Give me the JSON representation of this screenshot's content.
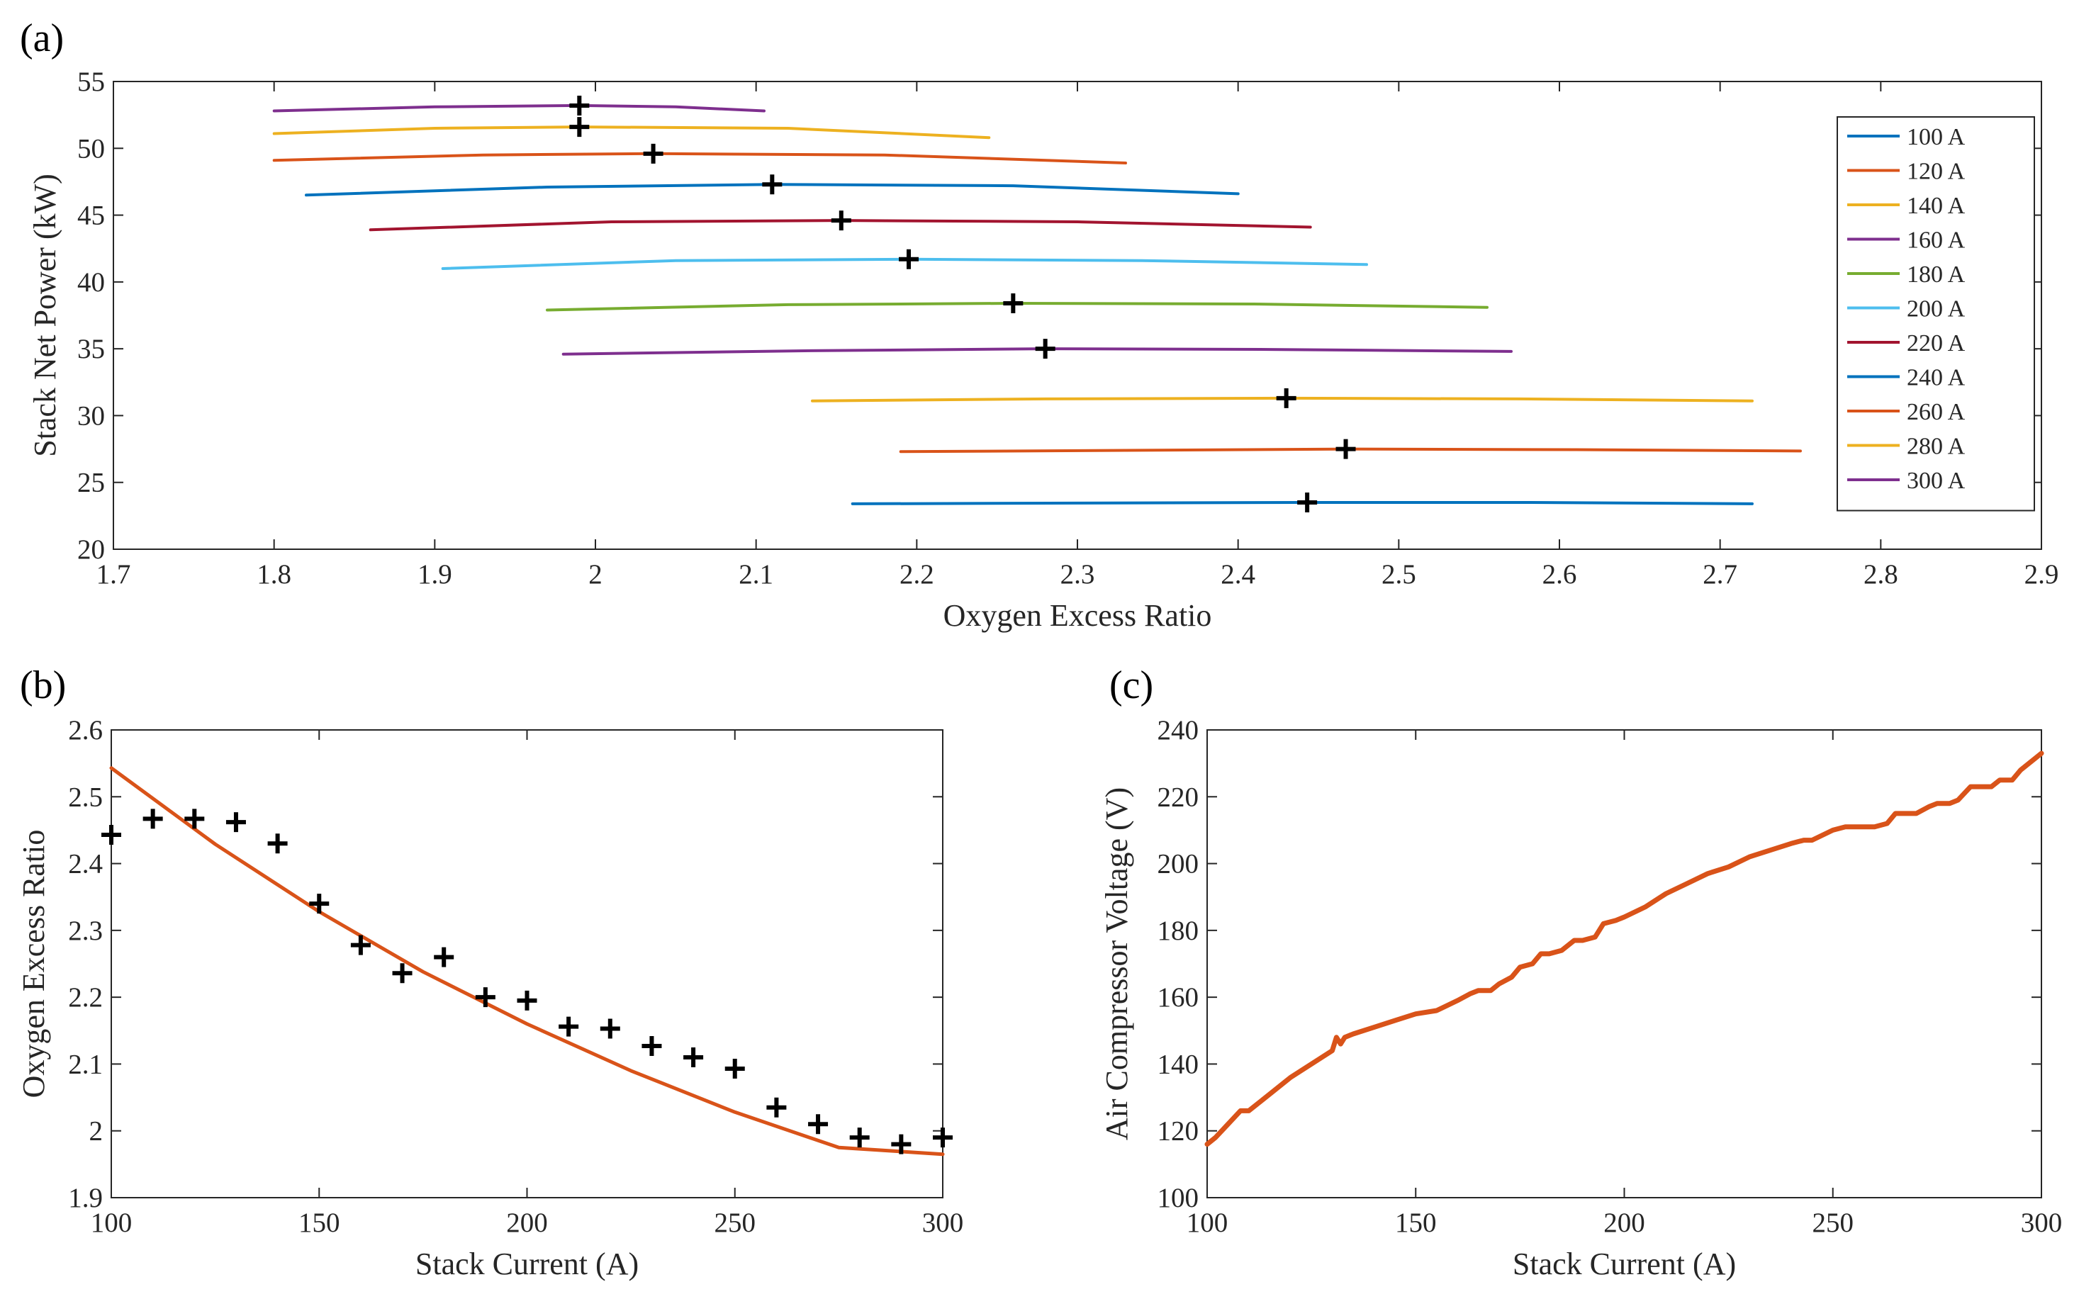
{
  "panels": {
    "a": {
      "label": "(a)"
    },
    "b": {
      "label": "(b)"
    },
    "c": {
      "label": "(c)"
    }
  },
  "chart_data": [
    {
      "id": "a",
      "type": "line",
      "xlabel": "Oxygen Excess Ratio",
      "ylabel": "Stack Net Power (kW)",
      "xlim": [
        1.7,
        2.9
      ],
      "ylim": [
        20,
        55
      ],
      "xticks": [
        1.7,
        1.8,
        1.9,
        2,
        2.1,
        2.2,
        2.3,
        2.4,
        2.5,
        2.6,
        2.7,
        2.8,
        2.9
      ],
      "xtick_labels": [
        "1.7",
        "1.8",
        "1.9",
        "2",
        "2.1",
        "2.2",
        "2.3",
        "2.4",
        "2.5",
        "2.6",
        "2.7",
        "2.8",
        "2.9"
      ],
      "yticks": [
        20,
        25,
        30,
        35,
        40,
        45,
        50,
        55
      ],
      "ytick_labels": [
        "20",
        "25",
        "30",
        "35",
        "40",
        "45",
        "50",
        "55"
      ],
      "grid": false,
      "legend_position": "right",
      "series": [
        {
          "name": "100 A",
          "color": "#0072BD",
          "x": [
            2.16,
            2.3,
            2.44,
            2.58,
            2.72
          ],
          "y": [
            23.4,
            23.45,
            23.5,
            23.5,
            23.4
          ],
          "marker": [
            2.443,
            23.5
          ]
        },
        {
          "name": "120 A",
          "color": "#D95319",
          "x": [
            2.19,
            2.33,
            2.47,
            2.61,
            2.75
          ],
          "y": [
            27.3,
            27.4,
            27.5,
            27.45,
            27.35
          ],
          "marker": [
            2.467,
            27.5
          ]
        },
        {
          "name": "140 A",
          "color": "#EDB120",
          "x": [
            2.135,
            2.28,
            2.43,
            2.575,
            2.72
          ],
          "y": [
            31.1,
            31.25,
            31.3,
            31.25,
            31.1
          ],
          "marker": [
            2.43,
            31.3
          ]
        },
        {
          "name": "160 A",
          "color": "#7E2F8E",
          "x": [
            1.98,
            2.13,
            2.28,
            2.42,
            2.57
          ],
          "y": [
            34.6,
            34.85,
            35.0,
            34.95,
            34.8
          ],
          "marker": [
            2.28,
            35.0
          ]
        },
        {
          "name": "180 A",
          "color": "#77AC30",
          "x": [
            1.97,
            2.12,
            2.26,
            2.41,
            2.555
          ],
          "y": [
            37.9,
            38.3,
            38.4,
            38.35,
            38.1
          ],
          "marker": [
            2.26,
            38.4
          ]
        },
        {
          "name": "200 A",
          "color": "#4DBEEE",
          "x": [
            1.905,
            2.05,
            2.195,
            2.34,
            2.48
          ],
          "y": [
            41.0,
            41.6,
            41.7,
            41.6,
            41.3
          ],
          "marker": [
            2.195,
            41.7
          ]
        },
        {
          "name": "220 A",
          "color": "#A2142F",
          "x": [
            1.86,
            2.01,
            2.153,
            2.3,
            2.445
          ],
          "y": [
            43.9,
            44.5,
            44.6,
            44.5,
            44.1
          ],
          "marker": [
            2.153,
            44.6
          ]
        },
        {
          "name": "240 A",
          "color": "#0072BD",
          "x": [
            1.82,
            1.97,
            2.11,
            2.26,
            2.4
          ],
          "y": [
            46.5,
            47.1,
            47.3,
            47.2,
            46.6
          ],
          "marker": [
            2.11,
            47.3
          ]
        },
        {
          "name": "260 A",
          "color": "#D95319",
          "x": [
            1.8,
            1.93,
            2.036,
            2.18,
            2.33
          ],
          "y": [
            49.1,
            49.5,
            49.6,
            49.5,
            48.9
          ],
          "marker": [
            2.036,
            49.6
          ]
        },
        {
          "name": "280 A",
          "color": "#EDB120",
          "x": [
            1.8,
            1.9,
            1.99,
            2.12,
            2.245
          ],
          "y": [
            51.1,
            51.5,
            51.6,
            51.5,
            50.8
          ],
          "marker": [
            1.99,
            51.6
          ]
        },
        {
          "name": "300 A",
          "color": "#7E2F8E",
          "x": [
            1.8,
            1.9,
            1.99,
            2.05,
            2.105
          ],
          "y": [
            52.8,
            53.1,
            53.2,
            53.1,
            52.8
          ],
          "marker": [
            1.99,
            53.2
          ]
        }
      ]
    },
    {
      "id": "b",
      "type": "scatter",
      "xlabel": "Stack Current (A)",
      "ylabel": "Oxygen Excess Ratio",
      "xlim": [
        100,
        300
      ],
      "ylim": [
        1.9,
        2.6
      ],
      "xticks": [
        100,
        150,
        200,
        250,
        300
      ],
      "xtick_labels": [
        "100",
        "150",
        "200",
        "250",
        "300"
      ],
      "yticks": [
        1.9,
        2,
        2.1,
        2.2,
        2.3,
        2.4,
        2.5,
        2.6
      ],
      "ytick_labels": [
        "1.9",
        "2",
        "2.1",
        "2.2",
        "2.3",
        "2.4",
        "2.5",
        "2.6"
      ],
      "grid": false,
      "points": {
        "x": [
          100,
          110,
          120,
          130,
          140,
          150,
          160,
          170,
          180,
          190,
          200,
          210,
          220,
          230,
          240,
          250,
          260,
          270,
          280,
          290,
          300
        ],
        "y": [
          2.443,
          2.467,
          2.467,
          2.462,
          2.43,
          2.34,
          2.278,
          2.236,
          2.26,
          2.2,
          2.195,
          2.156,
          2.153,
          2.127,
          2.11,
          2.093,
          2.035,
          2.01,
          1.99,
          1.98,
          1.99
        ]
      },
      "fit": {
        "color": "#D95319",
        "x": [
          100,
          125,
          150,
          175,
          200,
          225,
          250,
          275,
          300
        ],
        "y": [
          2.543,
          2.429,
          2.328,
          2.238,
          2.16,
          2.09,
          2.028,
          1.975,
          1.965
        ]
      }
    },
    {
      "id": "c",
      "type": "line",
      "xlabel": "Stack Current (A)",
      "ylabel": "Air Compressor Voltage (V)",
      "xlim": [
        100,
        300
      ],
      "ylim": [
        100,
        240
      ],
      "xticks": [
        100,
        150,
        200,
        250,
        300
      ],
      "xtick_labels": [
        "100",
        "150",
        "200",
        "250",
        "300"
      ],
      "yticks": [
        100,
        120,
        140,
        160,
        180,
        200,
        220,
        240
      ],
      "ytick_labels": [
        "100",
        "120",
        "140",
        "160",
        "180",
        "200",
        "220",
        "240"
      ],
      "grid": false,
      "series": [
        {
          "color": "#D95319",
          "x": [
            100,
            102,
            105,
            108,
            110,
            112,
            115,
            120,
            125,
            130,
            131,
            132,
            133,
            135,
            140,
            145,
            150,
            155,
            160,
            163,
            165,
            168,
            170,
            173,
            175,
            178,
            180,
            182,
            185,
            188,
            190,
            193,
            195,
            198,
            200,
            205,
            210,
            215,
            220,
            225,
            230,
            235,
            240,
            243,
            245,
            250,
            253,
            255,
            260,
            263,
            265,
            268,
            270,
            273,
            275,
            278,
            280,
            283,
            285,
            288,
            290,
            293,
            295,
            300
          ],
          "y": [
            116,
            118,
            122,
            126,
            126,
            128,
            131,
            136,
            140,
            144,
            148,
            146,
            148,
            149,
            151,
            153,
            155,
            156,
            159,
            161,
            162,
            162,
            164,
            166,
            169,
            170,
            173,
            173,
            174,
            177,
            177,
            178,
            182,
            183,
            184,
            187,
            191,
            194,
            197,
            199,
            202,
            204,
            206,
            207,
            207,
            210,
            211,
            211,
            211,
            212,
            215,
            215,
            215,
            217,
            218,
            218,
            219,
            223,
            223,
            223,
            225,
            225,
            228,
            233
          ]
        }
      ]
    }
  ]
}
